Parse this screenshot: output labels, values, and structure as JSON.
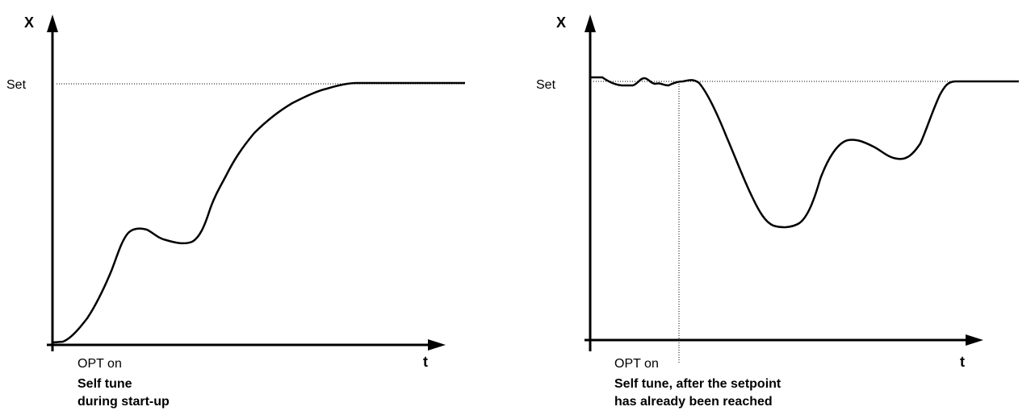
{
  "panels": [
    {
      "id": "startup",
      "y_axis_label": "X",
      "x_axis_label": "t",
      "setpoint_label": "Set",
      "event_label": "OPT on",
      "caption_lines": [
        "Self tune",
        "during start-up"
      ]
    },
    {
      "id": "after-setpoint",
      "y_axis_label": "X",
      "x_axis_label": "t",
      "setpoint_label": "Set",
      "event_label": "OPT on",
      "caption_lines": [
        "Self tune, after  the setpoint",
        "has already been reached"
      ]
    }
  ],
  "colors": {
    "line": "#000000",
    "reference": "#000000"
  }
}
